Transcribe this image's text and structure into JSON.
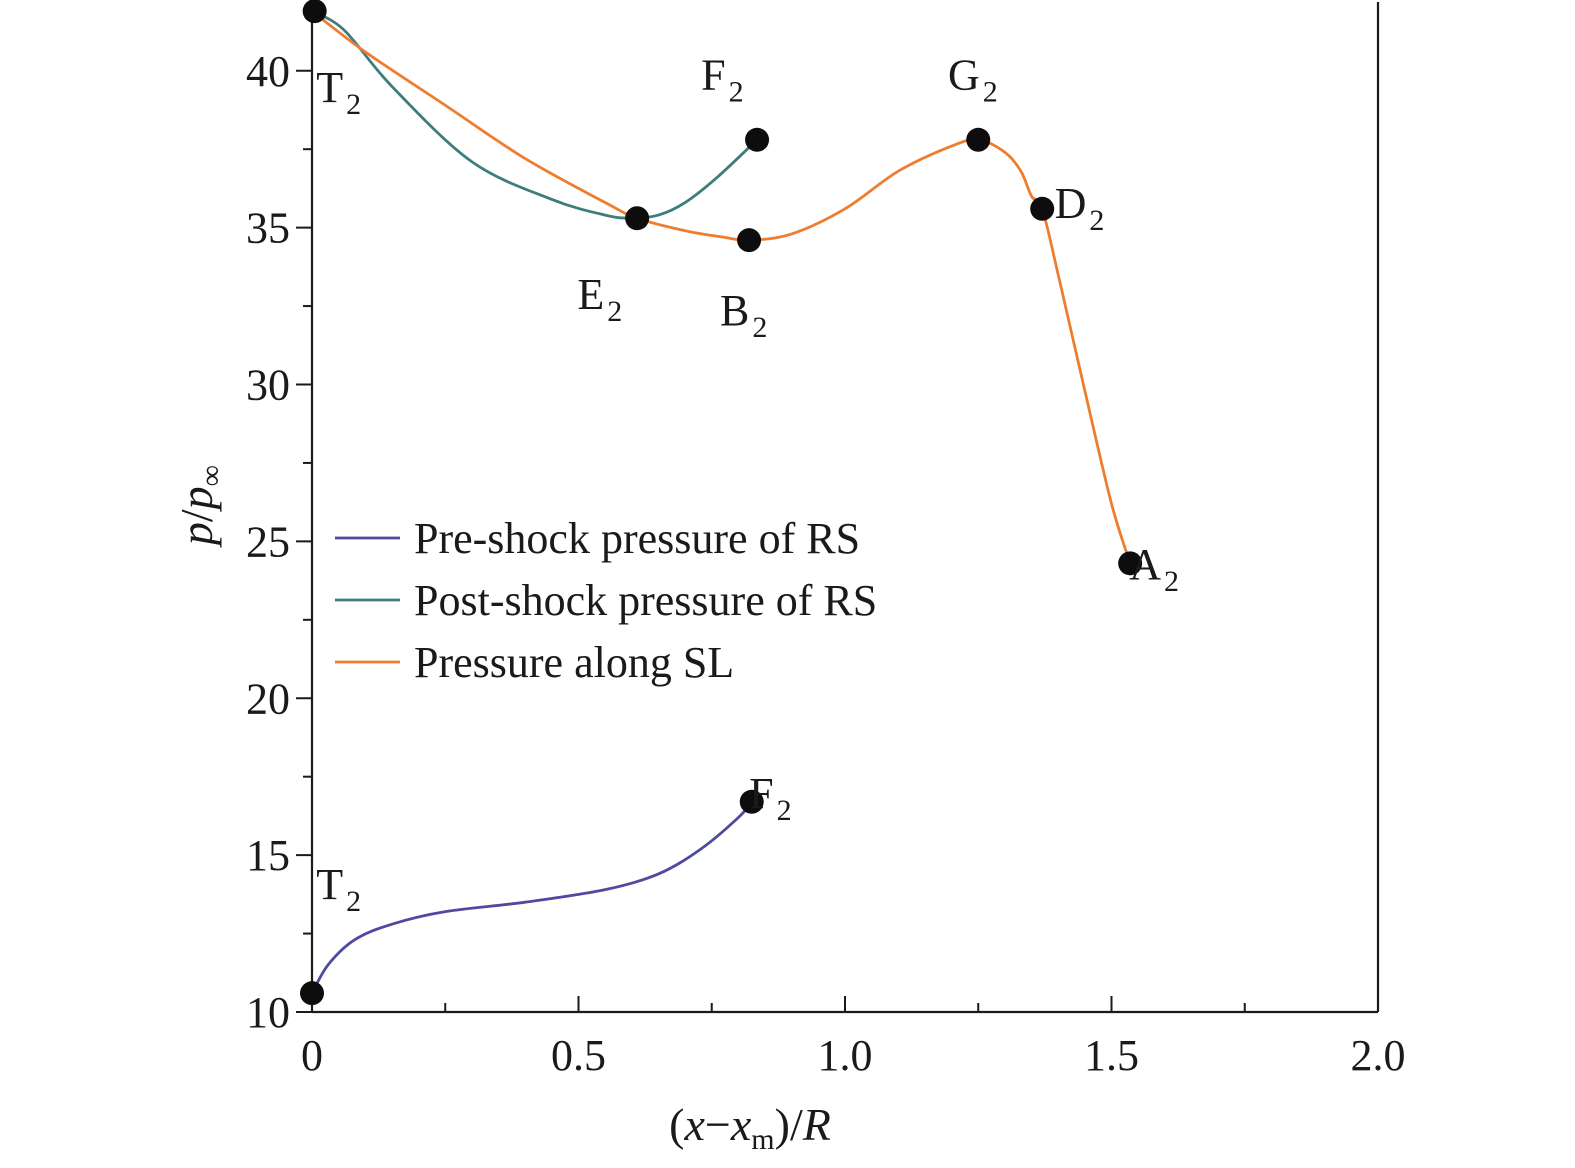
{
  "chart_data": {
    "type": "line",
    "xlabel": {
      "open": "(",
      "var": "x",
      "minus": "−",
      "var2": "x",
      "sub": "m",
      "close": ")/",
      "den": "R"
    },
    "ylabel": {
      "num": "p",
      "slash": "/",
      "den": "p",
      "sub": "∞"
    },
    "xlim": [
      0,
      2.0
    ],
    "ylim": [
      10,
      42
    ],
    "xticks": [
      {
        "value": 0,
        "label": "0"
      },
      {
        "value": 0.5,
        "label": "0.5"
      },
      {
        "value": 1.0,
        "label": "1.0"
      },
      {
        "value": 1.5,
        "label": "1.5"
      },
      {
        "value": 2.0,
        "label": "2.0"
      }
    ],
    "yticks": [
      {
        "value": 10,
        "label": "10"
      },
      {
        "value": 15,
        "label": "15"
      },
      {
        "value": 20,
        "label": "20"
      },
      {
        "value": 25,
        "label": "25"
      },
      {
        "value": 30,
        "label": "30"
      },
      {
        "value": 35,
        "label": "35"
      },
      {
        "value": 40,
        "label": "40"
      }
    ],
    "series": [
      {
        "name": "Pre-shock pressure of RS",
        "color": "#4f4aa0",
        "x": [
          0.0,
          0.03,
          0.08,
          0.15,
          0.25,
          0.4,
          0.55,
          0.65,
          0.73,
          0.8,
          0.825
        ],
        "y": [
          10.6,
          11.5,
          12.3,
          12.8,
          13.2,
          13.5,
          13.9,
          14.4,
          15.2,
          16.2,
          16.7
        ]
      },
      {
        "name": "Post-shock pressure of RS",
        "color": "#3d7d7d",
        "x": [
          0.0,
          0.06,
          0.15,
          0.3,
          0.45,
          0.55,
          0.6,
          0.65,
          0.7,
          0.76,
          0.835
        ],
        "y": [
          41.9,
          41.3,
          39.5,
          37.1,
          35.9,
          35.4,
          35.3,
          35.4,
          35.8,
          36.6,
          37.8
        ]
      },
      {
        "name": "Pressure along SL",
        "color": "#ee7d30",
        "x": [
          0.0,
          0.1,
          0.25,
          0.4,
          0.55,
          0.61,
          0.7,
          0.77,
          0.82,
          0.9,
          1.0,
          1.1,
          1.2,
          1.25,
          1.3,
          1.33,
          1.35,
          1.37,
          1.4,
          1.45,
          1.5,
          1.535
        ],
        "y": [
          41.9,
          40.6,
          38.9,
          37.2,
          35.8,
          35.3,
          34.9,
          34.7,
          34.6,
          34.8,
          35.6,
          36.8,
          37.6,
          37.8,
          37.4,
          36.8,
          36.0,
          35.6,
          33.5,
          29.8,
          26.2,
          24.3
        ]
      }
    ],
    "markers": [
      {
        "x": 0.005,
        "y": 41.9
      },
      {
        "x": 0.835,
        "y": 37.8
      },
      {
        "x": 1.25,
        "y": 37.8
      },
      {
        "x": 1.37,
        "y": 35.6
      },
      {
        "x": 0.61,
        "y": 35.3
      },
      {
        "x": 0.82,
        "y": 34.6
      },
      {
        "x": 1.535,
        "y": 24.3
      },
      {
        "x": 0.825,
        "y": 16.7
      },
      {
        "x": 0.0,
        "y": 10.6
      }
    ],
    "point_labels": [
      {
        "letter": "T",
        "sub": "2",
        "x": 0.05,
        "y": 39.0
      },
      {
        "letter": "F",
        "sub": "2",
        "x": 0.77,
        "y": 39.4
      },
      {
        "letter": "G",
        "sub": "2",
        "x": 1.24,
        "y": 39.4
      },
      {
        "letter": "D",
        "sub": "2",
        "x": 1.44,
        "y": 35.3
      },
      {
        "letter": "E",
        "sub": "2",
        "x": 0.54,
        "y": 32.4
      },
      {
        "letter": "B",
        "sub": "2",
        "x": 0.81,
        "y": 31.9
      },
      {
        "letter": "A",
        "sub": "2",
        "x": 1.58,
        "y": 23.8
      },
      {
        "letter": "F",
        "sub": "2",
        "x": 0.86,
        "y": 16.5
      },
      {
        "letter": "T",
        "sub": "2",
        "x": 0.05,
        "y": 13.6
      }
    ],
    "legend": {
      "placement": "center-left",
      "frame": false
    },
    "grid": false
  }
}
